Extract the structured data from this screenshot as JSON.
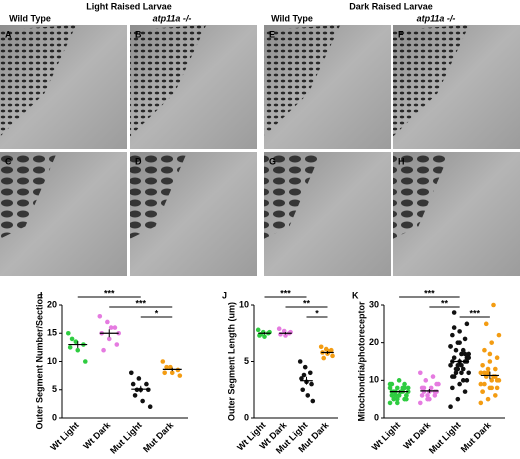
{
  "figure": {
    "headers": [
      "Light Raised Larvae",
      "Dark Raised Larvae"
    ],
    "columns": [
      "Wild Type",
      "atp11a -/-",
      "Wild Type",
      "atp11a -/-"
    ],
    "panels": [
      "A",
      "B",
      "E",
      "F",
      "C",
      "D",
      "G",
      "H"
    ]
  },
  "chart_data": [
    {
      "type": "strip",
      "panel": "I",
      "y_label": "Outer Segment Number/Section",
      "categories": [
        "Wt Light",
        "Wt Dark",
        "Mut Light",
        "Mut Dark"
      ],
      "colors": [
        "#2ecc40",
        "#e57be0",
        "#111111",
        "#f39c12"
      ],
      "values": [
        [
          15,
          13.5,
          13,
          12.5,
          12,
          10,
          14
        ],
        [
          18,
          17,
          16,
          15,
          14,
          13,
          12,
          16,
          15
        ],
        [
          8,
          7,
          6,
          6,
          5,
          5,
          4,
          3,
          2,
          5
        ],
        [
          10,
          9,
          8.5,
          8,
          8,
          7.5,
          9
        ]
      ],
      "means": [
        13,
        15,
        5.1,
        8.6
      ],
      "sems": [
        0.6,
        0.7,
        0.6,
        0.3
      ],
      "ylim": [
        0,
        20
      ],
      "yticks": [
        0,
        5,
        10,
        15,
        20
      ],
      "brackets": [
        {
          "label": "***",
          "groups": [
            0,
            2
          ]
        },
        {
          "label": "***",
          "groups": [
            1,
            3
          ]
        },
        {
          "label": "*",
          "groups": [
            2,
            3
          ]
        }
      ]
    },
    {
      "type": "strip",
      "panel": "J",
      "y_label": "Outer Segment Length (um)",
      "categories": [
        "Wt Light",
        "Wt Dark",
        "Mut Light",
        "Mut Dark"
      ],
      "colors": [
        "#2ecc40",
        "#e57be0",
        "#111111",
        "#f39c12"
      ],
      "values": [
        [
          7.8,
          7.6,
          7.5,
          7.3,
          7.2,
          7.6,
          7.4
        ],
        [
          7.9,
          7.7,
          7.5,
          7.4,
          7.3,
          7.6
        ],
        [
          5,
          4.5,
          4,
          3.5,
          3.2,
          3,
          2.5,
          2,
          1.5,
          3.8
        ],
        [
          6.3,
          6.1,
          6,
          5.8,
          5.7,
          5.5,
          5.3,
          5.9
        ]
      ],
      "means": [
        7.5,
        7.5,
        3.3,
        5.8
      ],
      "sems": [
        0.1,
        0.1,
        0.35,
        0.12
      ],
      "ylim": [
        0,
        10
      ],
      "yticks": [
        0,
        5,
        10
      ],
      "brackets": [
        {
          "label": "***",
          "groups": [
            0,
            2
          ]
        },
        {
          "label": "**",
          "groups": [
            1,
            3
          ]
        },
        {
          "label": "*",
          "groups": [
            2,
            3
          ]
        }
      ]
    },
    {
      "type": "strip",
      "panel": "K",
      "y_label": "Mitochondria/photoreceptor",
      "categories": [
        "Wt Light",
        "Wt Dark",
        "Mut Light",
        "Mut Dark"
      ],
      "colors": [
        "#2ecc40",
        "#e57be0",
        "#111111",
        "#f39c12"
      ],
      "values": [
        [
          4,
          5,
          5,
          6,
          6,
          6,
          7,
          7,
          7,
          7,
          8,
          8,
          8,
          9,
          9,
          10,
          6,
          5,
          7,
          8,
          6,
          7,
          9,
          4,
          8,
          7,
          6,
          5
        ],
        [
          4,
          5,
          6,
          6,
          7,
          7,
          8,
          8,
          9,
          10,
          11,
          12,
          6,
          7,
          8,
          5,
          9,
          7
        ],
        [
          3,
          5,
          7,
          8,
          9,
          10,
          11,
          12,
          12,
          13,
          13,
          14,
          14,
          15,
          15,
          15,
          16,
          16,
          17,
          17,
          18,
          18,
          19,
          20,
          21,
          22,
          23,
          25,
          28,
          14,
          16,
          12,
          10,
          19,
          13,
          17,
          11,
          20,
          15,
          24
        ],
        [
          4,
          5,
          6,
          7,
          8,
          8,
          9,
          10,
          10,
          11,
          11,
          12,
          12,
          13,
          14,
          15,
          16,
          18,
          20,
          22,
          25,
          30,
          9,
          13,
          11,
          7,
          17,
          10,
          12,
          8
        ]
      ],
      "means": [
        7,
        7.2,
        15,
        11.3
      ],
      "sems": [
        0.3,
        0.5,
        0.8,
        1
      ],
      "ylim": [
        0,
        30
      ],
      "yticks": [
        0,
        10,
        20,
        30
      ],
      "brackets": [
        {
          "label": "***",
          "groups": [
            0,
            2
          ]
        },
        {
          "label": "**",
          "groups": [
            1,
            2
          ]
        },
        {
          "label": "***",
          "groups": [
            2,
            3
          ]
        }
      ]
    }
  ]
}
